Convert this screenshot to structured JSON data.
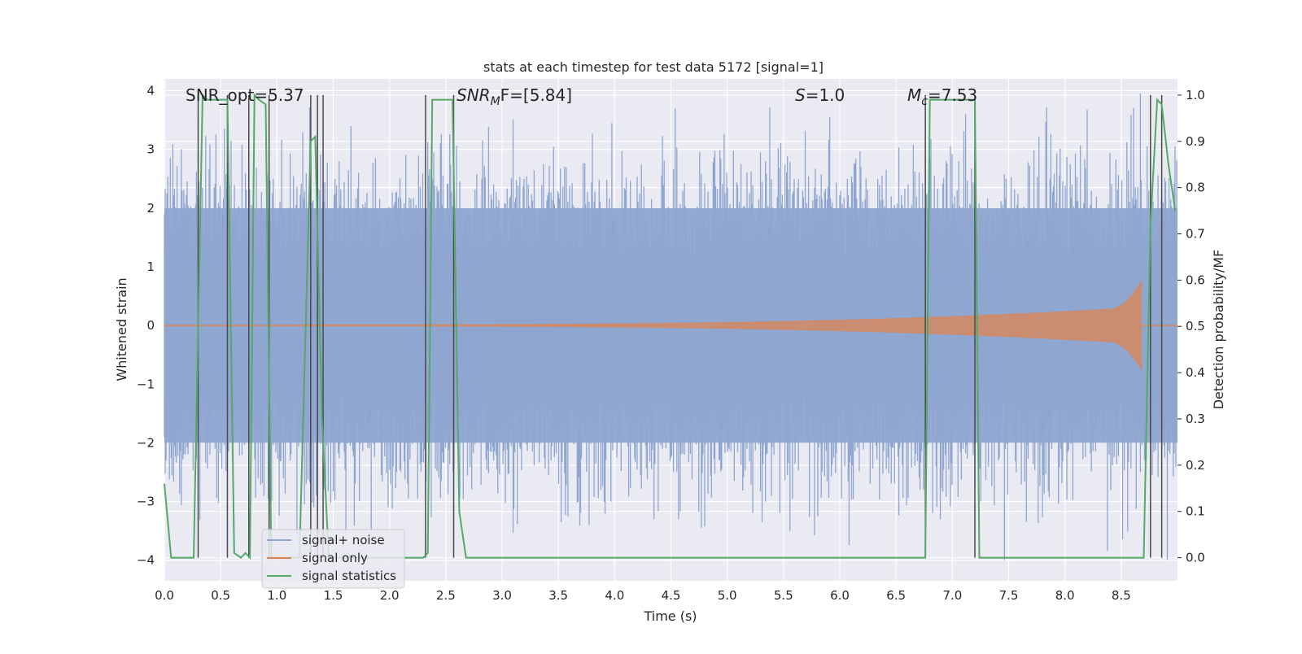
{
  "chart_data": {
    "type": "line",
    "title": "stats at each timestep for test data 5172 [signal=1]",
    "xlabel": "Time (s)",
    "ylabel_left": "Whitened strain",
    "ylabel_right": "Detection probability/MF",
    "xlim": [
      0.0,
      9.0
    ],
    "ylim_left": [
      -4.35,
      4.2
    ],
    "ylim_right": [
      -0.05,
      1.035
    ],
    "x_ticks": [
      "0.0",
      "0.5",
      "1.0",
      "1.5",
      "2.0",
      "2.5",
      "3.0",
      "3.5",
      "4.0",
      "4.5",
      "5.0",
      "5.5",
      "6.0",
      "6.5",
      "7.0",
      "7.5",
      "8.0",
      "8.5"
    ],
    "y_ticks_left": [
      "−4",
      "−3",
      "−2",
      "−1",
      "0",
      "1",
      "2",
      "3",
      "4"
    ],
    "y_ticks_right": [
      "0.0",
      "0.1",
      "0.2",
      "0.3",
      "0.4",
      "0.5",
      "0.6",
      "0.7",
      "0.8",
      "0.9",
      "1.0"
    ],
    "grid": true,
    "legend_position": "lower-left",
    "annotations": {
      "snr_opt": "SNR_opt=5.37",
      "snr_mf_prefix": "SNR",
      "snr_mf_sub": "M",
      "snr_mf_suffix": "F=[5.84]",
      "s_var": "S",
      "s_value": "=1.0",
      "mc_var": "M",
      "mc_sub": "c",
      "mc_value": "=7.53"
    },
    "series": [
      {
        "name": "signal+ noise",
        "color": "#8fa6d0",
        "style": "noisy band, amplitude ~2.5 typical, peaks ~3.7"
      },
      {
        "name": "signal only",
        "color": "#dd8452",
        "style": "chirp, amplitude growing to ~0.75 at 8.68 s"
      },
      {
        "name": "signal statistics",
        "color": "#55a868",
        "axis": "right",
        "x": [
          0.0,
          0.06,
          0.12,
          0.2,
          0.26,
          0.34,
          0.38,
          0.44,
          0.5,
          0.56,
          0.62,
          0.68,
          0.72,
          0.76,
          0.8,
          0.84,
          0.9,
          0.95,
          1.0,
          1.1,
          1.2,
          1.3,
          1.34,
          1.4,
          1.46,
          1.5,
          1.6,
          1.8,
          2.0,
          2.2,
          2.3,
          2.34,
          2.38,
          2.44,
          2.5,
          2.56,
          2.62,
          2.68,
          3.0,
          4.0,
          5.0,
          6.0,
          6.76,
          6.8,
          6.86,
          7.0,
          7.18,
          7.2,
          7.24,
          7.3,
          7.5,
          8.0,
          8.5,
          8.7,
          8.76,
          8.82,
          8.86,
          8.92,
          8.98
        ],
        "values": [
          0.16,
          0.0,
          0.0,
          0.0,
          0.0,
          1.0,
          0.99,
          0.99,
          0.99,
          0.99,
          0.01,
          0.0,
          0.01,
          0.0,
          1.0,
          0.99,
          0.98,
          0.0,
          0.0,
          0.0,
          0.0,
          0.9,
          0.91,
          0.3,
          0.0,
          0.0,
          0.0,
          0.0,
          0.0,
          0.0,
          0.0,
          0.01,
          0.99,
          0.99,
          0.99,
          0.99,
          0.1,
          0.0,
          0.0,
          0.0,
          0.0,
          0.0,
          0.0,
          0.99,
          0.99,
          0.99,
          0.99,
          0.99,
          0.0,
          0.0,
          0.0,
          0.0,
          0.0,
          0.0,
          0.72,
          0.99,
          0.98,
          0.85,
          0.75
        ]
      }
    ],
    "vertical_markers": [
      0.3,
      0.56,
      0.75,
      0.93,
      1.3,
      1.36,
      1.41,
      2.32,
      2.57,
      6.76,
      7.2,
      8.76,
      8.86
    ]
  }
}
